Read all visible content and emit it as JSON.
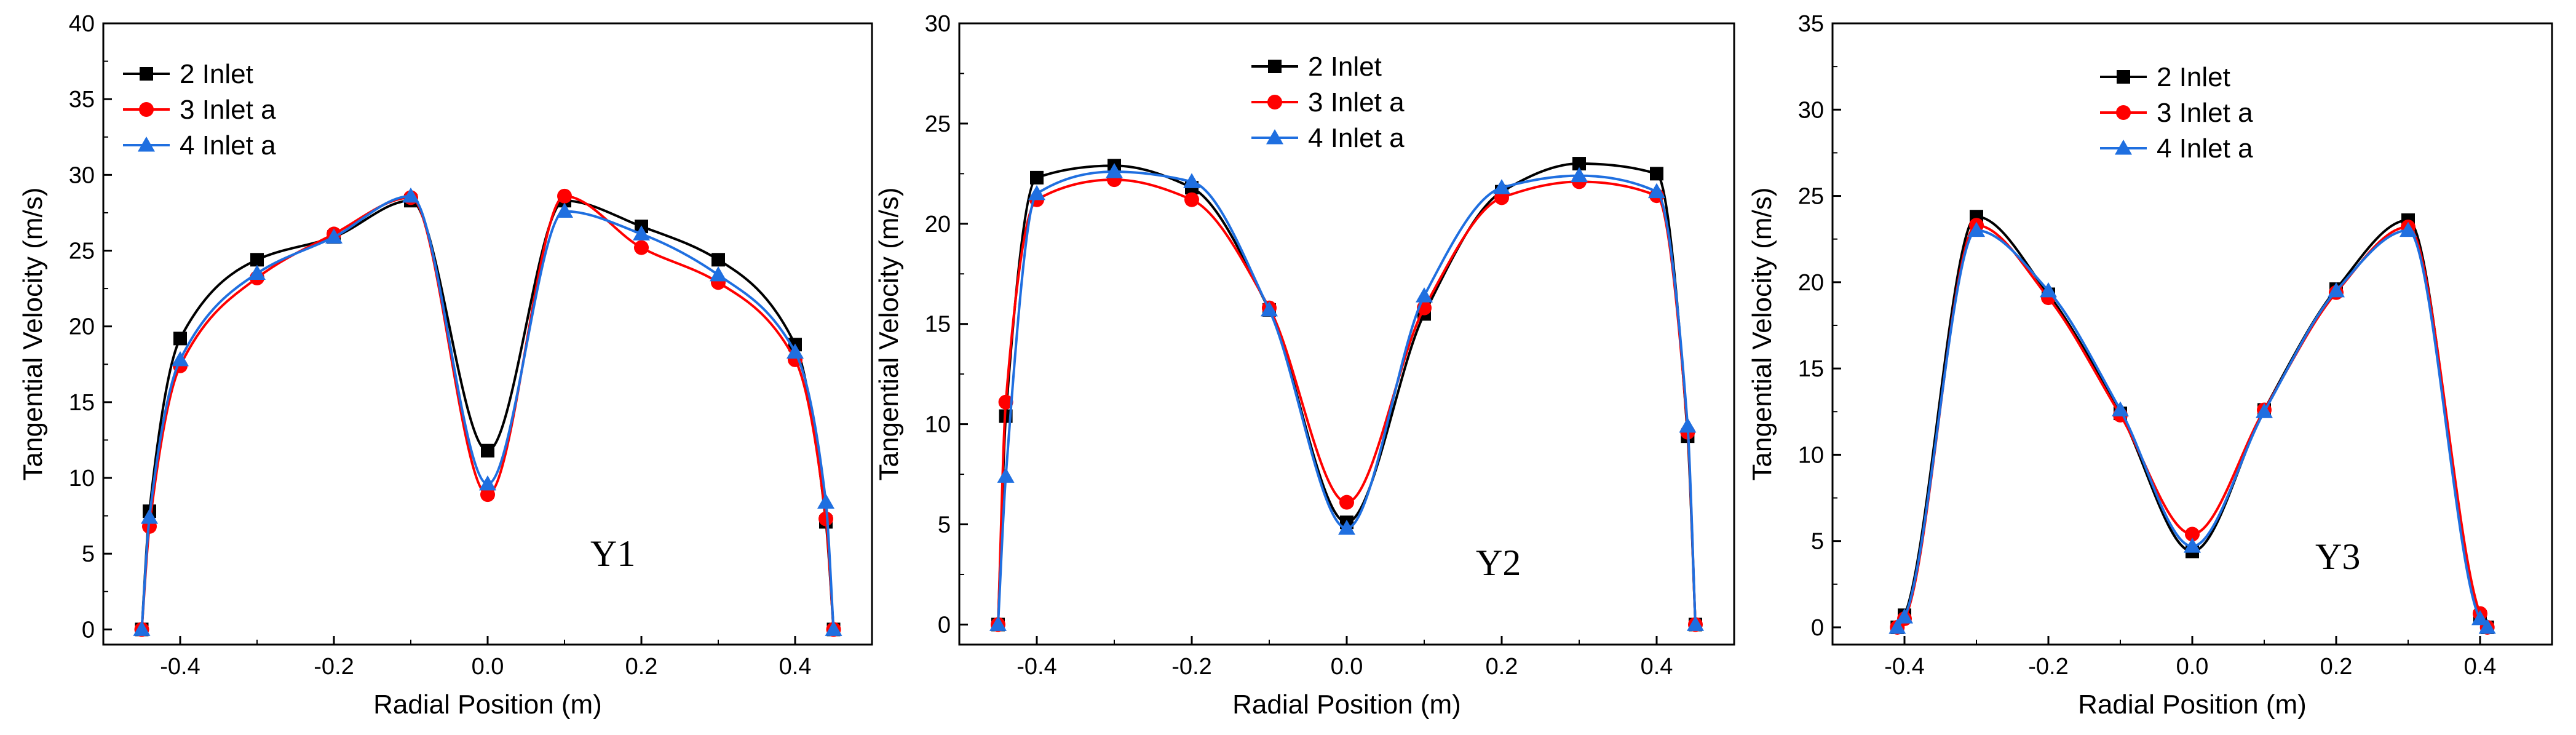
{
  "chart_data": [
    {
      "type": "line",
      "title": "",
      "panel_label": "Y1",
      "xlabel": "Radial Position (m)",
      "ylabel": "Tangential Velocity (m/s)",
      "xlim": [
        -0.5,
        0.5
      ],
      "ylim": [
        -1,
        40
      ],
      "xticks": [
        -0.4,
        -0.2,
        0.0,
        0.2,
        0.4
      ],
      "xtick_labels": [
        "-0.4",
        "-0.2",
        "0.0",
        "0.2",
        "0.4"
      ],
      "yticks": [
        0,
        5,
        10,
        15,
        20,
        25,
        30,
        35,
        40
      ],
      "ytick_labels": [
        "0",
        "5",
        "10",
        "15",
        "20",
        "25",
        "30",
        "35",
        "40"
      ],
      "legend_position": "top-left",
      "series": [
        {
          "name": "2 Inlet",
          "color": "#000000",
          "marker": "square",
          "x": [
            -0.45,
            -0.44,
            -0.4,
            -0.3,
            -0.2,
            -0.1,
            0.0,
            0.1,
            0.2,
            0.3,
            0.4,
            0.44,
            0.45
          ],
          "y": [
            0,
            7.8,
            19.2,
            24.4,
            25.9,
            28.3,
            11.8,
            28.3,
            26.6,
            24.4,
            18.8,
            7.1,
            0
          ]
        },
        {
          "name": "3 Inlet a",
          "color": "#ff0000",
          "marker": "circle",
          "x": [
            -0.45,
            -0.44,
            -0.4,
            -0.3,
            -0.2,
            -0.1,
            0.0,
            0.1,
            0.2,
            0.3,
            0.4,
            0.44,
            0.45
          ],
          "y": [
            0,
            6.8,
            17.4,
            23.2,
            26.1,
            28.5,
            8.9,
            28.6,
            25.2,
            22.9,
            17.8,
            7.3,
            0
          ]
        },
        {
          "name": "4 Inlet a",
          "color": "#1f6fe0",
          "marker": "triangle",
          "x": [
            -0.45,
            -0.44,
            -0.4,
            -0.3,
            -0.2,
            -0.1,
            0.0,
            0.1,
            0.2,
            0.3,
            0.4,
            0.44,
            0.45
          ],
          "y": [
            0,
            7.4,
            17.8,
            23.5,
            25.9,
            28.6,
            9.6,
            27.6,
            26.1,
            23.4,
            18.3,
            8.4,
            0
          ]
        }
      ]
    },
    {
      "type": "line",
      "title": "",
      "panel_label": "Y2",
      "xlabel": "Radial Position (m)",
      "ylabel": "Tangential Velocity (m/s)",
      "xlim": [
        -0.5,
        0.5
      ],
      "ylim": [
        -1,
        30
      ],
      "xticks": [
        -0.4,
        -0.2,
        0.0,
        0.2,
        0.4
      ],
      "xtick_labels": [
        "-0.4",
        "-0.2",
        "0.0",
        "0.2",
        "0.4"
      ],
      "yticks": [
        0,
        5,
        10,
        15,
        20,
        25,
        30
      ],
      "ytick_labels": [
        "0",
        "5",
        "10",
        "15",
        "20",
        "25",
        "30"
      ],
      "legend_position": "top-center",
      "series": [
        {
          "name": "2 Inlet",
          "color": "#000000",
          "marker": "square",
          "x": [
            -0.45,
            -0.44,
            -0.4,
            -0.3,
            -0.2,
            -0.1,
            0.0,
            0.1,
            0.2,
            0.3,
            0.4,
            0.44,
            0.45
          ],
          "y": [
            0,
            10.4,
            22.3,
            22.9,
            21.8,
            15.7,
            5.1,
            15.5,
            21.6,
            23.0,
            22.5,
            9.4,
            0
          ]
        },
        {
          "name": "3 Inlet a",
          "color": "#ff0000",
          "marker": "circle",
          "x": [
            -0.45,
            -0.44,
            -0.4,
            -0.3,
            -0.2,
            -0.1,
            0.0,
            0.1,
            0.2,
            0.3,
            0.4,
            0.44,
            0.45
          ],
          "y": [
            0,
            11.1,
            21.2,
            22.2,
            21.2,
            15.8,
            6.1,
            15.8,
            21.3,
            22.1,
            21.4,
            9.6,
            0
          ]
        },
        {
          "name": "4 Inlet a",
          "color": "#1f6fe0",
          "marker": "triangle",
          "x": [
            -0.45,
            -0.44,
            -0.4,
            -0.3,
            -0.2,
            -0.1,
            0.0,
            0.1,
            0.2,
            0.3,
            0.4,
            0.44,
            0.45
          ],
          "y": [
            0,
            7.4,
            21.5,
            22.6,
            22.1,
            15.7,
            4.8,
            16.4,
            21.8,
            22.4,
            21.6,
            9.9,
            0
          ]
        }
      ]
    },
    {
      "type": "line",
      "title": "",
      "panel_label": "Y3",
      "xlabel": "Radial Position (m)",
      "ylabel": "Tangential Velocity (m/s)",
      "xlim": [
        -0.5,
        0.5
      ],
      "ylim": [
        -1,
        35
      ],
      "xticks": [
        -0.4,
        -0.2,
        0.0,
        0.2,
        0.4
      ],
      "xtick_labels": [
        "-0.4",
        "-0.2",
        "0.0",
        "0.2",
        "0.4"
      ],
      "yticks": [
        0,
        5,
        10,
        15,
        20,
        25,
        30,
        35
      ],
      "ytick_labels": [
        "0",
        "5",
        "10",
        "15",
        "20",
        "25",
        "30",
        "35"
      ],
      "legend_position": "top-center",
      "series": [
        {
          "name": "2 Inlet",
          "color": "#000000",
          "marker": "square",
          "x": [
            -0.41,
            -0.4,
            -0.3,
            -0.2,
            -0.1,
            0.0,
            0.1,
            0.2,
            0.3,
            0.4,
            0.41
          ],
          "y": [
            0,
            0.7,
            23.8,
            19.3,
            12.4,
            4.4,
            12.6,
            19.6,
            23.6,
            0.6,
            0
          ]
        },
        {
          "name": "3 Inlet a",
          "color": "#ff0000",
          "marker": "circle",
          "x": [
            -0.41,
            -0.4,
            -0.3,
            -0.2,
            -0.1,
            0.0,
            0.1,
            0.2,
            0.3,
            0.4,
            0.41
          ],
          "y": [
            0,
            0.5,
            23.3,
            19.1,
            12.3,
            5.4,
            12.6,
            19.4,
            23.2,
            0.8,
            0
          ]
        },
        {
          "name": "4 Inlet a",
          "color": "#1f6fe0",
          "marker": "triangle",
          "x": [
            -0.41,
            -0.4,
            -0.3,
            -0.2,
            -0.1,
            0.0,
            0.1,
            0.2,
            0.3,
            0.4,
            0.41
          ],
          "y": [
            0,
            0.6,
            23.0,
            19.5,
            12.6,
            4.7,
            12.5,
            19.5,
            23.0,
            0.5,
            0
          ]
        }
      ]
    }
  ]
}
